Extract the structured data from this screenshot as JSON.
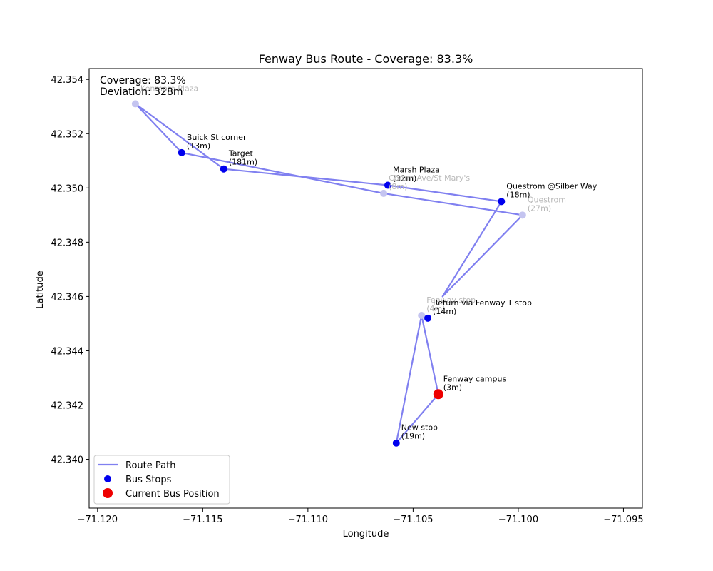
{
  "chart_data": {
    "type": "scatter",
    "title": "Fenway Bus Route - Coverage: 83.3%",
    "xlabel": "Longitude",
    "ylabel": "Latitude",
    "xlim": [
      -71.1204,
      -71.0941
    ],
    "ylim": [
      42.3382,
      42.3544
    ],
    "xticks": [
      -71.12,
      -71.115,
      -71.11,
      -71.105,
      -71.1,
      -71.095
    ],
    "xtick_labels": [
      "−71.120",
      "−71.115",
      "−71.110",
      "−71.105",
      "−71.100",
      "−71.095"
    ],
    "yticks": [
      42.34,
      42.342,
      42.344,
      42.346,
      42.348,
      42.35,
      42.352,
      42.354
    ],
    "ytick_labels": [
      "42.340",
      "42.342",
      "42.344",
      "42.346",
      "42.348",
      "42.350",
      "42.352",
      "42.354"
    ],
    "grid": false,
    "legend_position": "bottom-left",
    "info_box": {
      "coverage": "Coverage: 83.3%",
      "deviation": "Deviation: 328m"
    },
    "series": [
      {
        "name": "Route Path",
        "kind": "line",
        "color": "#8080f0",
        "points": [
          [
            -71.1038,
            42.3424
          ],
          [
            -71.1046,
            42.3453
          ],
          [
            -71.1058,
            42.3406
          ],
          [
            -71.1038,
            42.3424
          ]
        ],
        "segments": [
          [
            [
              -71.1182,
              42.3531
            ],
            [
              -71.116,
              42.3513
            ],
            [
              -71.1064,
              42.3498
            ],
            [
              -71.0998,
              42.349
            ],
            [
              -71.1036,
              42.346
            ],
            [
              -71.1008,
              42.3495
            ],
            [
              -71.1062,
              42.3501
            ],
            [
              -71.114,
              42.3507
            ],
            [
              -71.1182,
              42.3531
            ]
          ],
          [
            [
              -71.1038,
              42.3424
            ],
            [
              -71.1046,
              42.3453
            ],
            [
              -71.1058,
              42.3406
            ],
            [
              -71.1038,
              42.3424
            ]
          ]
        ]
      },
      {
        "name": "Bus Stops",
        "kind": "scatter",
        "color": "#0000ee",
        "points": [
          {
            "x": -71.1182,
            "y": 42.3531,
            "label": "Kenmore Plaza",
            "faded": true
          },
          {
            "x": -71.116,
            "y": 42.3513,
            "label": "Buick St corner\n(13m)",
            "faded": false
          },
          {
            "x": -71.114,
            "y": 42.3507,
            "label": "Target\n(181m)",
            "faded": false
          },
          {
            "x": -71.1062,
            "y": 42.3501,
            "label": "Marsh Plaza\n(32m)",
            "faded": false
          },
          {
            "x": -71.1064,
            "y": 42.3498,
            "label": "Comm Ave/St Mary's\n(8m)",
            "faded": true
          },
          {
            "x": -71.1008,
            "y": 42.3495,
            "label": "Questrom @Silber Way\n(18m)",
            "faded": false
          },
          {
            "x": -71.0998,
            "y": 42.349,
            "label": "Questrom\n(27m)",
            "faded": true
          },
          {
            "x": -71.1046,
            "y": 42.3453,
            "label": "Fenway stop\n(4m)",
            "faded": true
          },
          {
            "x": -71.1043,
            "y": 42.3452,
            "label": "Return via Fenway T stop\n(14m)",
            "faded": false
          },
          {
            "x": -71.1058,
            "y": 42.3406,
            "label": "New stop\n(19m)",
            "faded": false
          }
        ]
      },
      {
        "name": "Current Bus Position",
        "kind": "scatter",
        "color": "#ee0000",
        "points": [
          {
            "x": -71.1038,
            "y": 42.3424,
            "label": "Fenway campus\n(3m)"
          }
        ]
      }
    ],
    "legend": [
      {
        "label": "Route Path",
        "kind": "line",
        "color": "#8080f0"
      },
      {
        "label": "Bus Stops",
        "kind": "dot",
        "color": "#0000ee"
      },
      {
        "label": "Current Bus Position",
        "kind": "bigdot",
        "color": "#ee0000"
      }
    ]
  }
}
